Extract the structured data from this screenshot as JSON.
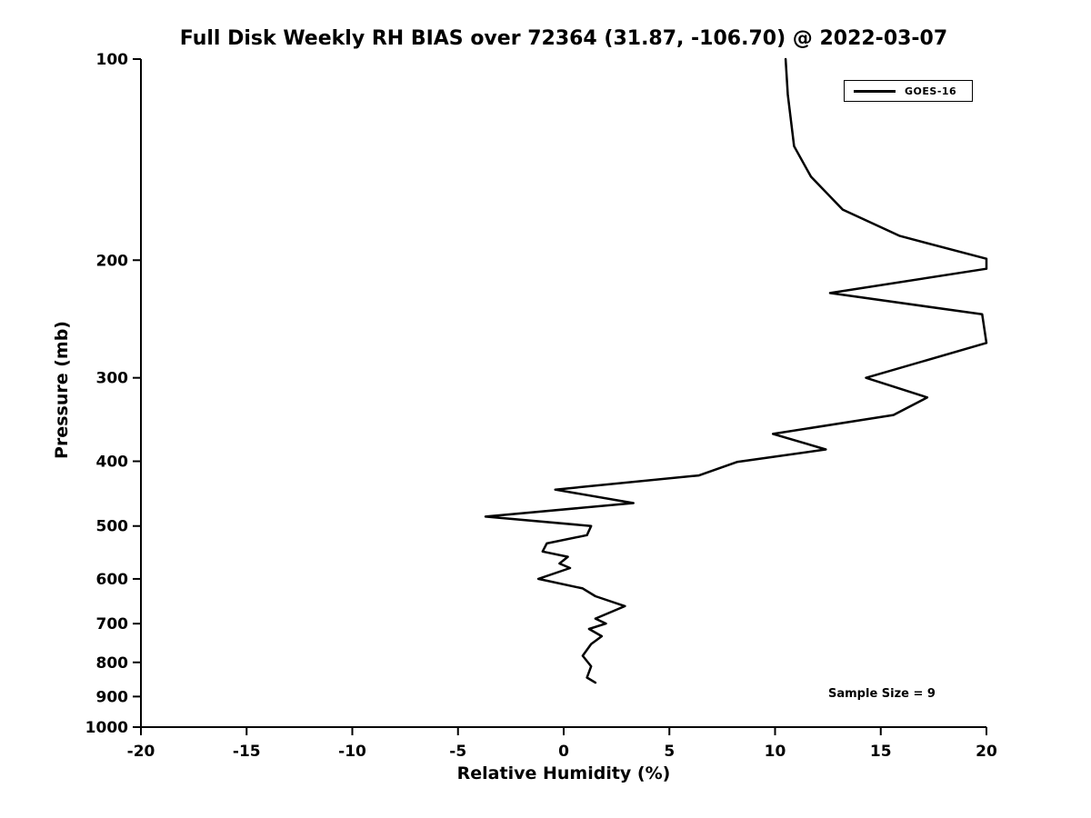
{
  "page": {
    "background_color": "#ffffff",
    "text_color": "#000000"
  },
  "chart_data": {
    "type": "line",
    "title": "Full Disk Weekly RH BIAS over 72364 (31.87, -106.70) @ 2022-03-07",
    "xlabel": "Relative Humidity (%)",
    "ylabel": "Pressure (mb)",
    "xlim": [
      -20,
      20
    ],
    "ylim": [
      100,
      1000
    ],
    "y_scale": "log",
    "y_inverted": true,
    "grid": false,
    "x_ticks": [
      -20,
      -15,
      -10,
      -5,
      0,
      5,
      10,
      15,
      20
    ],
    "y_ticks": [
      100,
      200,
      300,
      400,
      500,
      600,
      700,
      800,
      900,
      1000
    ],
    "legend": {
      "position": "top-right",
      "entries": [
        {
          "label": "GOES-16",
          "color": "#000000"
        }
      ]
    },
    "annotations": [
      {
        "text": "Sample Size = 9"
      }
    ],
    "series": [
      {
        "name": "GOES-16",
        "color": "#000000",
        "line_width": 2.5,
        "points_format": "[pressure_mb, rh_bias_percent]",
        "points": [
          [
            100,
            10.5
          ],
          [
            113,
            10.6
          ],
          [
            135,
            10.9
          ],
          [
            150,
            11.7
          ],
          [
            168,
            13.2
          ],
          [
            184,
            15.9
          ],
          [
            199,
            20.0
          ],
          [
            206,
            20.0
          ],
          [
            224,
            12.6
          ],
          [
            241,
            19.8
          ],
          [
            266,
            20.0
          ],
          [
            300,
            14.3
          ],
          [
            321,
            17.2
          ],
          [
            341,
            15.6
          ],
          [
            364,
            9.9
          ],
          [
            384,
            12.4
          ],
          [
            401,
            8.2
          ],
          [
            420,
            6.4
          ],
          [
            441,
            -0.4
          ],
          [
            462,
            3.3
          ],
          [
            484,
            -3.7
          ],
          [
            500,
            1.3
          ],
          [
            516,
            1.1
          ],
          [
            531,
            -0.8
          ],
          [
            546,
            -1.0
          ],
          [
            556,
            0.2
          ],
          [
            569,
            -0.2
          ],
          [
            578,
            0.3
          ],
          [
            600,
            -1.2
          ],
          [
            620,
            0.9
          ],
          [
            637,
            1.5
          ],
          [
            659,
            2.9
          ],
          [
            688,
            1.5
          ],
          [
            700,
            2.0
          ],
          [
            713,
            1.2
          ],
          [
            731,
            1.8
          ],
          [
            751,
            1.3
          ],
          [
            782,
            0.9
          ],
          [
            811,
            1.3
          ],
          [
            843,
            1.1
          ],
          [
            858,
            1.5
          ]
        ]
      }
    ]
  }
}
